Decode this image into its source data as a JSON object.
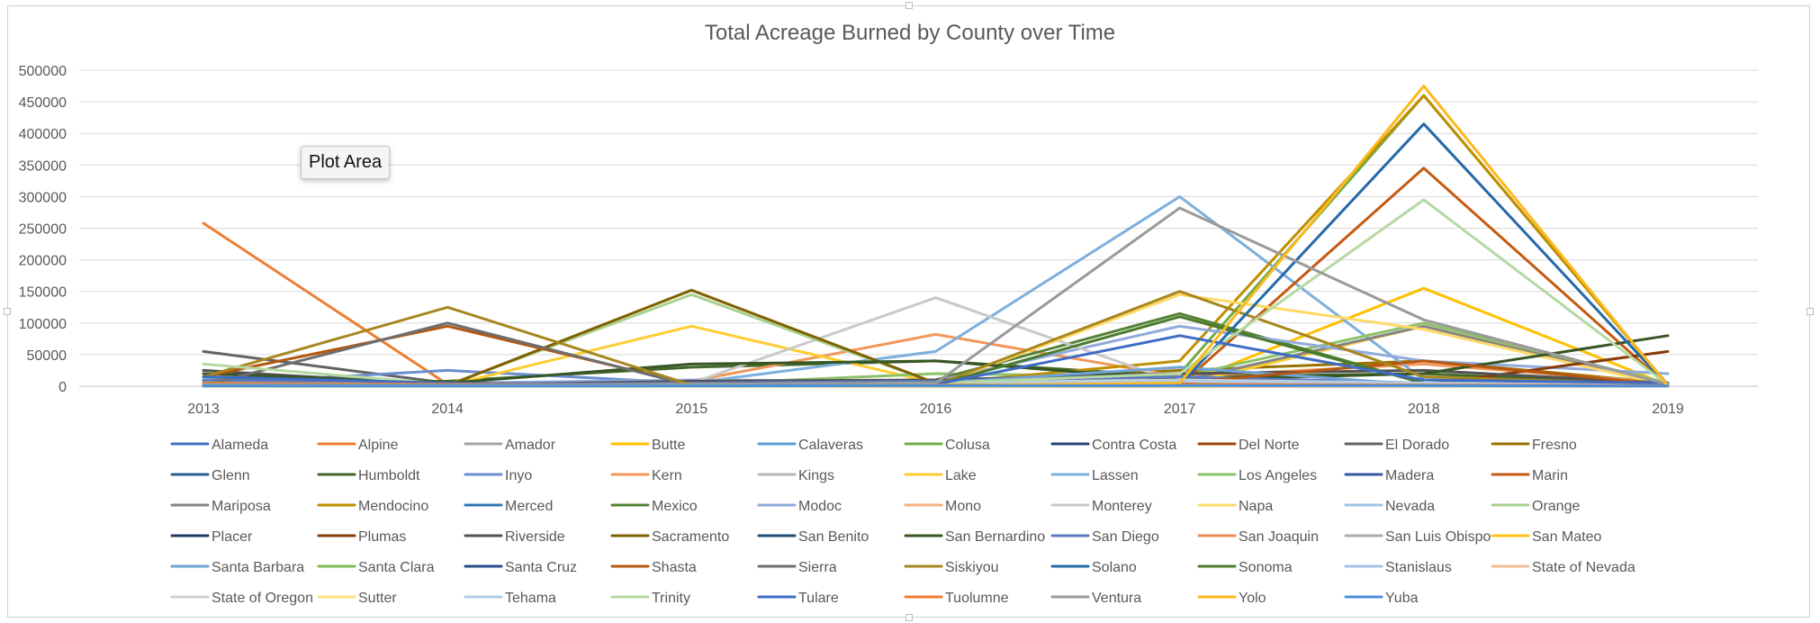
{
  "tooltip": {
    "text": "Plot Area"
  },
  "chart_data": {
    "type": "line",
    "title": "Total Acreage Burned by County over Time",
    "xlabel": "",
    "ylabel": "",
    "x": [
      "2013",
      "2014",
      "2015",
      "2016",
      "2017",
      "2018",
      "2019"
    ],
    "ylim": [
      0,
      500000
    ],
    "yticks": [
      0,
      50000,
      100000,
      150000,
      200000,
      250000,
      300000,
      350000,
      400000,
      450000,
      500000
    ],
    "grid": true,
    "legend": "bottom",
    "series": [
      {
        "name": "Alameda",
        "color": "#4472C4",
        "values": [
          1000,
          500,
          800,
          1500,
          2000,
          1200,
          300
        ]
      },
      {
        "name": "Alpine",
        "color": "#ED7D31",
        "values": [
          258000,
          3000,
          0,
          0,
          0,
          0,
          0
        ]
      },
      {
        "name": "Amador",
        "color": "#A5A5A5",
        "values": [
          8000,
          2000,
          1000,
          3000,
          5000,
          4000,
          500
        ]
      },
      {
        "name": "Butte",
        "color": "#FFC000",
        "values": [
          5000,
          3000,
          2000,
          1000,
          2000,
          155000,
          2000
        ]
      },
      {
        "name": "Calaveras",
        "color": "#5B9BD5",
        "values": [
          2000,
          1000,
          4000,
          3000,
          2000,
          1500,
          500
        ]
      },
      {
        "name": "Colusa",
        "color": "#70AD47",
        "values": [
          3000,
          2000,
          3000,
          2000,
          20000,
          460000,
          2000
        ]
      },
      {
        "name": "Contra Costa",
        "color": "#264478",
        "values": [
          1500,
          800,
          1200,
          2000,
          3000,
          2500,
          800
        ]
      },
      {
        "name": "Del Norte",
        "color": "#9E480E",
        "values": [
          500,
          2000,
          4000,
          1000,
          8000,
          3000,
          500
        ]
      },
      {
        "name": "El Dorado",
        "color": "#636363",
        "values": [
          55000,
          5000,
          2000,
          2000,
          3000,
          2000,
          1000
        ]
      },
      {
        "name": "Fresno",
        "color": "#997300",
        "values": [
          10000,
          3000,
          2000,
          5000,
          25000,
          40000,
          5000
        ]
      },
      {
        "name": "Glenn",
        "color": "#255E91",
        "values": [
          2000,
          1000,
          2000,
          5000,
          15000,
          2000,
          500
        ]
      },
      {
        "name": "Humboldt",
        "color": "#43682B",
        "values": [
          5000,
          8000,
          30000,
          40000,
          15000,
          20000,
          3000
        ]
      },
      {
        "name": "Inyo",
        "color": "#698ED0",
        "values": [
          3000,
          25000,
          5000,
          2000,
          3000,
          2000,
          1000
        ]
      },
      {
        "name": "Kern",
        "color": "#F1975A",
        "values": [
          10000,
          5000,
          8000,
          82000,
          15000,
          35000,
          5000
        ]
      },
      {
        "name": "Kings",
        "color": "#B7B7B7",
        "values": [
          500,
          300,
          200,
          800,
          500,
          400,
          200
        ]
      },
      {
        "name": "Lake",
        "color": "#FFCD33",
        "values": [
          2000,
          1000,
          95000,
          5000,
          2000,
          95000,
          2000
        ]
      },
      {
        "name": "Lassen",
        "color": "#7CAFDD",
        "values": [
          3000,
          2000,
          5000,
          55000,
          300000,
          10000,
          2000
        ]
      },
      {
        "name": "Los Angeles",
        "color": "#8CC168",
        "values": [
          10000,
          5000,
          3000,
          20000,
          15000,
          100000,
          5000
        ]
      },
      {
        "name": "Madera",
        "color": "#335AA1",
        "values": [
          2000,
          1000,
          1000,
          2000,
          8000,
          3000,
          500
        ]
      },
      {
        "name": "Marin",
        "color": "#C55A11",
        "values": [
          500,
          1000,
          500,
          300,
          1000,
          345000,
          200
        ]
      },
      {
        "name": "Mariposa",
        "color": "#848484",
        "values": [
          5000,
          3000,
          2000,
          3000,
          8000,
          95000,
          1000
        ]
      },
      {
        "name": "Mendocino",
        "color": "#BF8F00",
        "values": [
          2000,
          3000,
          2000,
          4000,
          40000,
          460000,
          2000
        ]
      },
      {
        "name": "Merced",
        "color": "#2E75B6",
        "values": [
          1000,
          500,
          1000,
          800,
          2000,
          1500,
          400
        ]
      },
      {
        "name": "Mexico",
        "color": "#548235",
        "values": [
          10000,
          5000,
          5000,
          10000,
          115000,
          5000,
          3000
        ]
      },
      {
        "name": "Modoc",
        "color": "#8FAADC",
        "values": [
          5000,
          5000,
          10000,
          8000,
          95000,
          40000,
          20000
        ]
      },
      {
        "name": "Mono",
        "color": "#F4B183",
        "values": [
          2000,
          3000,
          2000,
          1000,
          3000,
          2000,
          1000
        ]
      },
      {
        "name": "Monterey",
        "color": "#C9C9C9",
        "values": [
          5000,
          3000,
          5000,
          140000,
          5000,
          3000,
          2000
        ]
      },
      {
        "name": "Napa",
        "color": "#FFD966",
        "values": [
          1000,
          500,
          2000,
          1000,
          145000,
          90000,
          1000
        ]
      },
      {
        "name": "Nevada",
        "color": "#9DC3E6",
        "values": [
          1000,
          1000,
          500,
          800,
          1000,
          2000,
          300
        ]
      },
      {
        "name": "Orange",
        "color": "#A9D18E",
        "values": [
          2000,
          2000,
          145000,
          5000,
          15000,
          5000,
          1000
        ]
      },
      {
        "name": "Placer",
        "color": "#1F3864",
        "values": [
          2000,
          2000,
          1000,
          2000,
          3000,
          2000,
          1000
        ]
      },
      {
        "name": "Plumas",
        "color": "#843C0C",
        "values": [
          3000,
          2000,
          2000,
          1000,
          8000,
          2000,
          55000
        ]
      },
      {
        "name": "Riverside",
        "color": "#525252",
        "values": [
          25000,
          2000,
          8000,
          10000,
          20000,
          25000,
          5000
        ]
      },
      {
        "name": "Sacramento",
        "color": "#7F6000",
        "values": [
          2000,
          1000,
          152000,
          5000,
          2000,
          1000,
          500
        ]
      },
      {
        "name": "San Benito",
        "color": "#1F4E79",
        "values": [
          1000,
          500,
          500,
          2000,
          2000,
          1000,
          300
        ]
      },
      {
        "name": "San Bernardino",
        "color": "#375623",
        "values": [
          20000,
          5000,
          35000,
          40000,
          10000,
          20000,
          80000
        ]
      },
      {
        "name": "San Diego",
        "color": "#5B7BC0",
        "values": [
          10000,
          3000,
          5000,
          8000,
          15000,
          5000,
          3000
        ]
      },
      {
        "name": "San Joaquin",
        "color": "#F08A54",
        "values": [
          500,
          300,
          500,
          800,
          1000,
          600,
          300
        ]
      },
      {
        "name": "San Luis Obispo",
        "color": "#ABABAB",
        "values": [
          2000,
          1000,
          1000,
          2000,
          5000,
          3000,
          1000
        ]
      },
      {
        "name": "San Mateo",
        "color": "#FFC417",
        "values": [
          300,
          200,
          200,
          300,
          500,
          400,
          200
        ]
      },
      {
        "name": "Santa Barbara",
        "color": "#6FA3D6",
        "values": [
          5000,
          3000,
          2000,
          5000,
          30000,
          2000,
          3000
        ]
      },
      {
        "name": "Santa Clara",
        "color": "#7DBB55",
        "values": [
          2000,
          1000,
          1000,
          3000,
          5000,
          2000,
          1000
        ]
      },
      {
        "name": "Santa Cruz",
        "color": "#2A4B8A",
        "values": [
          500,
          300,
          500,
          800,
          1000,
          500,
          200
        ]
      },
      {
        "name": "Shasta",
        "color": "#B4570F",
        "values": [
          15000,
          95000,
          3000,
          3000,
          5000,
          40000,
          2000
        ]
      },
      {
        "name": "Sierra",
        "color": "#6E6E6E",
        "values": [
          1000,
          100000,
          1000,
          500,
          1000,
          800,
          300
        ]
      },
      {
        "name": "Siskiyou",
        "color": "#A8861F",
        "values": [
          15000,
          125000,
          2000,
          2000,
          150000,
          15000,
          3000
        ]
      },
      {
        "name": "Solano",
        "color": "#2569A8",
        "values": [
          500,
          500,
          500,
          1000,
          2000,
          415000,
          500
        ]
      },
      {
        "name": "Sonoma",
        "color": "#4B7A2E",
        "values": [
          500,
          500,
          1000,
          2000,
          110000,
          5000,
          500
        ]
      },
      {
        "name": "Stanislaus",
        "color": "#A6BFE2",
        "values": [
          2000,
          1000,
          1000,
          2000,
          3000,
          2000,
          500
        ]
      },
      {
        "name": "State of Nevada",
        "color": "#F6BE96",
        "values": [
          1000,
          500,
          1000,
          1500,
          2000,
          1000,
          500
        ]
      },
      {
        "name": "State of Oregon",
        "color": "#D0D0D0",
        "values": [
          5000,
          2000,
          3000,
          5000,
          10000,
          5000,
          2000
        ]
      },
      {
        "name": "Sutter",
        "color": "#FFE07F",
        "values": [
          300,
          200,
          300,
          500,
          800,
          400,
          200
        ]
      },
      {
        "name": "Tehama",
        "color": "#B0CDEB",
        "values": [
          5000,
          3000,
          2000,
          3000,
          8000,
          5000,
          1000
        ]
      },
      {
        "name": "Trinity",
        "color": "#B5D9A0",
        "values": [
          35000,
          3000,
          2000,
          5000,
          20000,
          295000,
          2000
        ]
      },
      {
        "name": "Tulare",
        "color": "#3E6CC4",
        "values": [
          15000,
          5000,
          2000,
          3000,
          80000,
          10000,
          5000
        ]
      },
      {
        "name": "Tuolumne",
        "color": "#F07A30",
        "values": [
          5000,
          3000,
          2000,
          2000,
          3000,
          2000,
          1000
        ]
      },
      {
        "name": "Ventura",
        "color": "#9A9A9A",
        "values": [
          3000,
          2000,
          3000,
          5000,
          282000,
          105000,
          3000
        ]
      },
      {
        "name": "Yolo",
        "color": "#FFB81C",
        "values": [
          500,
          300,
          500,
          800,
          5000,
          475000,
          500
        ]
      },
      {
        "name": "Yuba",
        "color": "#4A90D9",
        "values": [
          500,
          300,
          500,
          800,
          1000,
          800,
          300
        ]
      }
    ]
  }
}
